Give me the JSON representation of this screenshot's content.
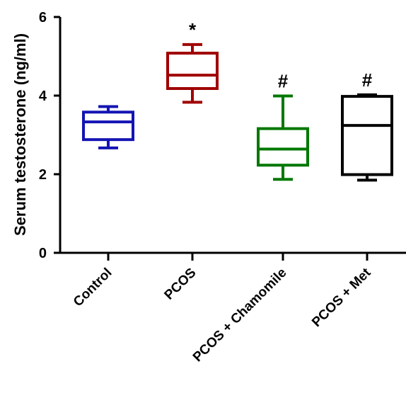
{
  "chart_data": {
    "type": "box",
    "ylabel": "Serum testosterone (ng/ml)",
    "ylim": [
      0,
      6
    ],
    "yticks": [
      "0",
      "2",
      "4",
      "6"
    ],
    "categories": [
      "Control",
      "PCOS",
      "PCOS + Chamomile",
      "PCOS + Met"
    ],
    "boxes": [
      {
        "category": "Control",
        "min": 2.67,
        "q1": 2.88,
        "median": 3.33,
        "q3": 3.58,
        "max": 3.72,
        "color": "#1414b4",
        "annotation": ""
      },
      {
        "category": "PCOS",
        "min": 3.83,
        "q1": 4.18,
        "median": 4.52,
        "q3": 5.08,
        "max": 5.3,
        "color": "#a00000",
        "annotation": "*"
      },
      {
        "category": "PCOS + Chamomile",
        "min": 1.87,
        "q1": 2.23,
        "median": 2.64,
        "q3": 3.16,
        "max": 3.99,
        "color": "#007800",
        "annotation": "#"
      },
      {
        "category": "PCOS + Met",
        "min": 1.85,
        "q1": 1.99,
        "median": 3.24,
        "q3": 3.98,
        "max": 4.02,
        "color": "#000000",
        "annotation": "#"
      }
    ]
  }
}
